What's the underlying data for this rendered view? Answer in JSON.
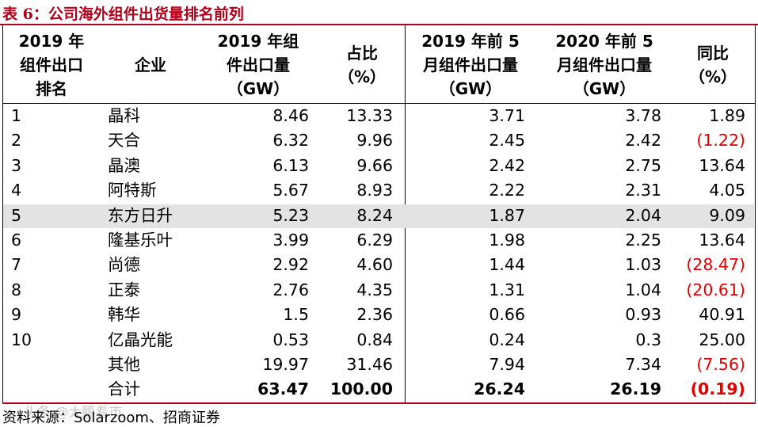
{
  "title": "表 6：公司海外组件出货量排名前列",
  "headers": {
    "rank": "2019 年\n组件出口\n排名",
    "company": "企业",
    "exp2019": "2019 年组\n件出口量\n（GW）",
    "share": "占比\n（%）",
    "exp2019_5m": "2019 年前 5\n月组件出口量\n（GW）",
    "exp2020_5m": "2020 年前 5\n月组件出口量\n（GW）",
    "yoy": "同比\n（%）"
  },
  "rows": [
    {
      "rank": "1",
      "company": "晶科",
      "exp2019": "8.46",
      "share": "13.33",
      "exp2019_5m": "3.71",
      "exp2020_5m": "3.78",
      "yoy": "1.89",
      "neg": false,
      "bold": false,
      "hl": false
    },
    {
      "rank": "2",
      "company": "天合",
      "exp2019": "6.32",
      "share": "9.96",
      "exp2019_5m": "2.45",
      "exp2020_5m": "2.42",
      "yoy": "(1.22)",
      "neg": true,
      "bold": false,
      "hl": false
    },
    {
      "rank": "3",
      "company": "晶澳",
      "exp2019": "6.13",
      "share": "9.66",
      "exp2019_5m": "2.42",
      "exp2020_5m": "2.75",
      "yoy": "13.64",
      "neg": false,
      "bold": false,
      "hl": false
    },
    {
      "rank": "4",
      "company": "阿特斯",
      "exp2019": "5.67",
      "share": "8.93",
      "exp2019_5m": "2.22",
      "exp2020_5m": "2.31",
      "yoy": "4.05",
      "neg": false,
      "bold": false,
      "hl": false
    },
    {
      "rank": "5",
      "company": "东方日升",
      "exp2019": "5.23",
      "share": "8.24",
      "exp2019_5m": "1.87",
      "exp2020_5m": "2.04",
      "yoy": "9.09",
      "neg": false,
      "bold": false,
      "hl": true
    },
    {
      "rank": "6",
      "company": "隆基乐叶",
      "exp2019": "3.99",
      "share": "6.29",
      "exp2019_5m": "1.98",
      "exp2020_5m": "2.25",
      "yoy": "13.64",
      "neg": false,
      "bold": false,
      "hl": false
    },
    {
      "rank": "7",
      "company": "尚德",
      "exp2019": "2.92",
      "share": "4.60",
      "exp2019_5m": "1.44",
      "exp2020_5m": "1.03",
      "yoy": "(28.47)",
      "neg": true,
      "bold": false,
      "hl": false
    },
    {
      "rank": "8",
      "company": "正泰",
      "exp2019": "2.76",
      "share": "4.35",
      "exp2019_5m": "1.31",
      "exp2020_5m": "1.04",
      "yoy": "(20.61)",
      "neg": true,
      "bold": false,
      "hl": false
    },
    {
      "rank": "9",
      "company": "韩华",
      "exp2019": "1.5",
      "share": "2.36",
      "exp2019_5m": "0.66",
      "exp2020_5m": "0.93",
      "yoy": "40.91",
      "neg": false,
      "bold": false,
      "hl": false
    },
    {
      "rank": "10",
      "company": "亿晶光能",
      "exp2019": "0.53",
      "share": "0.84",
      "exp2019_5m": "0.24",
      "exp2020_5m": "0.3",
      "yoy": "25.00",
      "neg": false,
      "bold": false,
      "hl": false
    },
    {
      "rank": "",
      "company": "其他",
      "exp2019": "19.97",
      "share": "31.46",
      "exp2019_5m": "7.94",
      "exp2020_5m": "7.34",
      "yoy": "(7.56)",
      "neg": true,
      "bold": false,
      "hl": false
    },
    {
      "rank": "",
      "company": "合计",
      "exp2019": "63.47",
      "share": "100.00",
      "exp2019_5m": "26.24",
      "exp2020_5m": "26.19",
      "yoy": "(0.19)",
      "neg": true,
      "bold": true,
      "hl": false
    }
  ],
  "source": "资料来源：Solarzoom、招商证券",
  "watermark": "头条 @大鹏看市"
}
